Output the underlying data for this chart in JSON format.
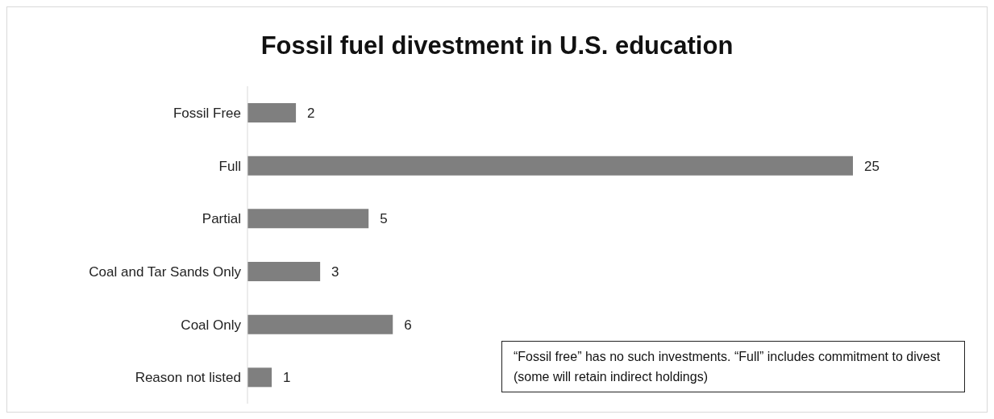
{
  "chart_data": {
    "type": "bar",
    "orientation": "horizontal",
    "title": "Fossil fuel divestment in U.S. education",
    "categories": [
      "Fossil Free",
      "Full",
      "Partial",
      "Coal and Tar Sands Only",
      "Coal Only",
      "Reason not listed"
    ],
    "values": [
      2,
      25,
      5,
      3,
      6,
      1
    ],
    "color": "#7f7f7f",
    "data_labels": true,
    "annotations": [
      "“Fossil free” has no such investments. “Full” includes commitment to divest (some will retain indirect holdings)"
    ]
  }
}
